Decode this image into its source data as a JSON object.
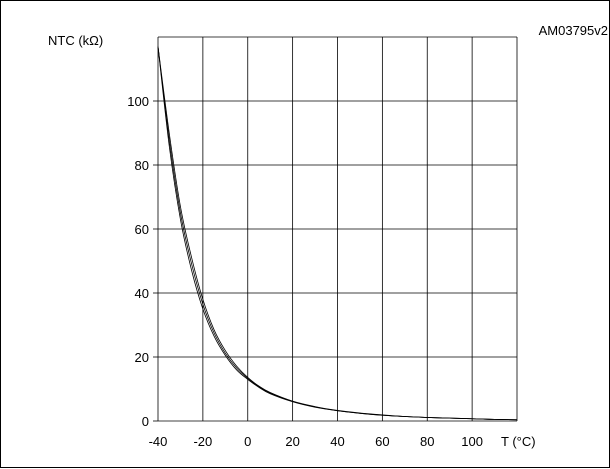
{
  "chart_data": {
    "type": "line",
    "figure_id": "AM03795v2",
    "ylabel": "NTC (kΩ)",
    "xlabel": "T (°C)",
    "xlim": [
      -40,
      120
    ],
    "ylim": [
      0,
      120
    ],
    "x_ticks": [
      -40,
      -20,
      0,
      20,
      40,
      60,
      80,
      100
    ],
    "x_tick_labels": [
      "-40",
      "-20",
      "0",
      "20",
      "40",
      "60",
      "80",
      "100"
    ],
    "y_ticks": [
      0,
      20,
      40,
      60,
      80,
      100
    ],
    "y_tick_labels": [
      "0",
      "20",
      "40",
      "60",
      "80",
      "100"
    ],
    "grid": true,
    "series": [
      {
        "x": [
          -40,
          -35,
          -30,
          -25,
          -20,
          -15,
          -10,
          -5,
          0,
          5,
          10,
          20,
          30,
          40,
          50,
          60,
          70,
          80,
          90,
          100,
          110,
          120
        ],
        "values": [
          117,
          86,
          63,
          47,
          35,
          26.5,
          20.5,
          16,
          13,
          10.5,
          8.5,
          6,
          4.3,
          3.2,
          2.4,
          1.8,
          1.4,
          1.1,
          0.9,
          0.7,
          0.5,
          0.4
        ]
      },
      {
        "x": [
          -40,
          -35,
          -30,
          -25,
          -20,
          -15,
          -10,
          -5,
          0,
          5,
          10,
          20,
          30,
          40,
          50,
          60,
          70,
          80,
          90,
          100,
          110,
          120
        ],
        "values": [
          117,
          88,
          65,
          49,
          36.5,
          27.5,
          21.2,
          16.6,
          13.3,
          10.7,
          8.7,
          6.1,
          4.4,
          3.2,
          2.4,
          1.8,
          1.4,
          1.1,
          0.9,
          0.7,
          0.5,
          0.4
        ]
      },
      {
        "x": [
          -40,
          -35,
          -30,
          -25,
          -20,
          -15,
          -10,
          -5,
          0,
          5,
          10,
          20,
          30,
          40,
          50,
          60,
          70,
          80,
          90,
          100,
          110,
          120
        ],
        "values": [
          117,
          90,
          67,
          51,
          38,
          28.5,
          22,
          17.2,
          13.6,
          10.9,
          8.9,
          6.2,
          4.5,
          3.3,
          2.5,
          1.9,
          1.4,
          1.1,
          0.9,
          0.7,
          0.5,
          0.4
        ]
      }
    ]
  }
}
